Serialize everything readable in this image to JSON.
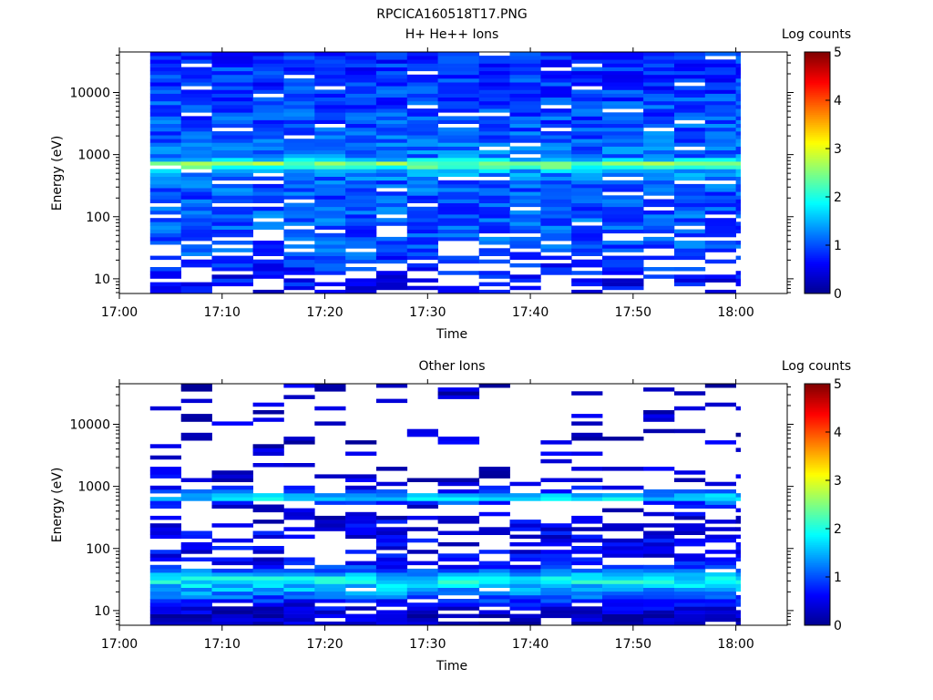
{
  "figure_title": "RPCICA160518T17.PNG",
  "colors": {
    "colormap": [
      "#00008f",
      "#0000ff",
      "#0080ff",
      "#00ffff",
      "#80ff80",
      "#ffff00",
      "#ff8000",
      "#ff0000",
      "#800000"
    ]
  },
  "chart_data": [
    {
      "type": "heatmap",
      "title": "H+ He++ Ions",
      "xlabel": "Time",
      "ylabel": "Energy (eV)",
      "x_ticks": [
        "17:00",
        "17:10",
        "17:20",
        "17:30",
        "17:40",
        "17:50",
        "18:00"
      ],
      "x_range": [
        "17:00",
        "18:05"
      ],
      "y_scale": "log",
      "y_ticks": [
        10,
        100,
        1000,
        10000
      ],
      "y_tick_labels": [
        "10",
        "100",
        "1000",
        "10000"
      ],
      "y_range": [
        5.8,
        45000
      ],
      "colorbar": {
        "label": "Log counts",
        "ticks": [
          "0",
          "1",
          "2",
          "3",
          "4",
          "5"
        ],
        "range": [
          0,
          5
        ]
      },
      "time_bins": [
        "17:03",
        "17:06",
        "17:09",
        "17:13",
        "17:16",
        "17:19",
        "17:22",
        "17:25",
        "17:28",
        "17:31",
        "17:35",
        "17:38",
        "17:41",
        "17:44",
        "17:47",
        "17:51",
        "17:54",
        "17:57",
        "18:00"
      ],
      "data_start": "17:03",
      "data_end": "18:00",
      "profile": {
        "energies": [
          8,
          11,
          15,
          22,
          30,
          50,
          100,
          200,
          400,
          550,
          650,
          700,
          750,
          900,
          1500,
          3000,
          10000,
          30000
        ],
        "level": [
          0.6,
          0.65,
          0.8,
          0.9,
          1.0,
          1.0,
          1.05,
          1.0,
          1.1,
          1.5,
          2.3,
          2.7,
          2.3,
          1.2,
          1.1,
          1.0,
          0.9,
          0.85
        ],
        "gap": [
          0.45,
          0.45,
          0.4,
          0.35,
          0.3,
          0.2,
          0.12,
          0.1,
          0.08,
          0.02,
          0.0,
          0.0,
          0.0,
          0.05,
          0.06,
          0.06,
          0.05,
          0.05
        ]
      }
    },
    {
      "type": "heatmap",
      "title": "Other Ions",
      "xlabel": "Time",
      "ylabel": "Energy (eV)",
      "x_ticks": [
        "17:00",
        "17:10",
        "17:20",
        "17:30",
        "17:40",
        "17:50",
        "18:00"
      ],
      "x_range": [
        "17:00",
        "18:05"
      ],
      "y_scale": "log",
      "y_ticks": [
        10,
        100,
        1000,
        10000
      ],
      "y_tick_labels": [
        "10",
        "100",
        "1000",
        "10000"
      ],
      "y_range": [
        5.8,
        45000
      ],
      "colorbar": {
        "label": "Log counts",
        "ticks": [
          "0",
          "1",
          "2",
          "3",
          "4",
          "5"
        ],
        "range": [
          0,
          5
        ]
      },
      "time_bins": [
        "17:03",
        "17:06",
        "17:09",
        "17:13",
        "17:16",
        "17:19",
        "17:22",
        "17:25",
        "17:28",
        "17:31",
        "17:35",
        "17:38",
        "17:41",
        "17:44",
        "17:47",
        "17:51",
        "17:54",
        "17:57",
        "18:00"
      ],
      "data_start": "17:03",
      "data_end": "18:00",
      "profile": {
        "energies": [
          8,
          12,
          18,
          25,
          30,
          35,
          45,
          60,
          100,
          200,
          300,
          500,
          620,
          680,
          750,
          1000,
          3000,
          10000,
          30000
        ],
        "level": [
          0.3,
          0.5,
          1.2,
          1.6,
          1.9,
          1.7,
          1.0,
          0.6,
          0.55,
          0.5,
          0.45,
          0.5,
          1.6,
          1.9,
          1.2,
          0.4,
          0.35,
          0.3,
          0.3
        ],
        "gap": [
          0.1,
          0.15,
          0.05,
          0.0,
          0.0,
          0.0,
          0.1,
          0.3,
          0.4,
          0.45,
          0.55,
          0.6,
          0.0,
          0.0,
          0.1,
          0.85,
          0.85,
          0.85,
          0.85
        ]
      }
    }
  ]
}
